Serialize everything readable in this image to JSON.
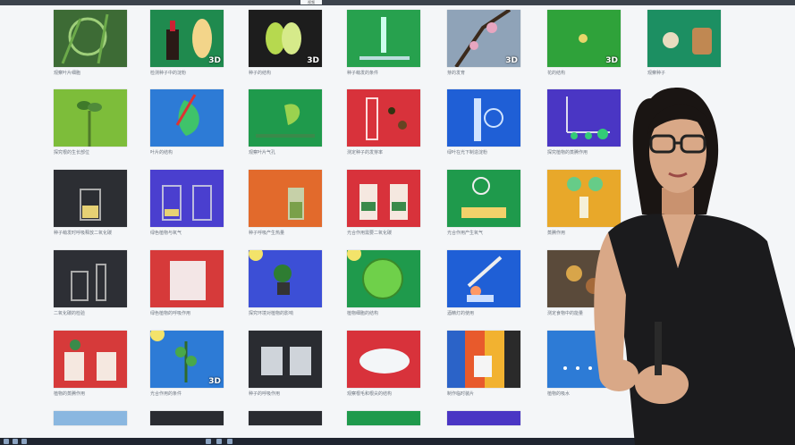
{
  "window": {
    "active_tab": "视频"
  },
  "tiles": [
    {
      "row": 0,
      "col": 0,
      "bg": "#3d6b35",
      "scene": "plant-icon",
      "caption": "观察叶片细胞",
      "badge": ""
    },
    {
      "row": 0,
      "col": 1,
      "bg": "#1f8a4e",
      "scene": "bottle-seed-icon",
      "caption": "检测种子中的淀粉",
      "badge": "3D"
    },
    {
      "row": 0,
      "col": 2,
      "bg": "#1d1d1d",
      "scene": "seed-icon",
      "caption": "种子的结构",
      "badge": "3D"
    },
    {
      "row": 0,
      "col": 3,
      "bg": "#27a14e",
      "scene": "test-tubes-icon",
      "caption": "种子萌发的条件",
      "badge": ""
    },
    {
      "row": 0,
      "col": 4,
      "bg": "#8fa3b8",
      "scene": "branch-icon",
      "caption": "芽的发育",
      "badge": "3D"
    },
    {
      "row": 0,
      "col": 5,
      "bg": "#2fa23a",
      "scene": "flower-icon",
      "caption": "花的结构",
      "badge": "3D"
    },
    {
      "row": 0,
      "col": 6,
      "bg": "#1c8f62",
      "scene": "seeds-sack-icon",
      "caption": "观察种子",
      "badge": ""
    },
    {
      "row": 1,
      "col": 0,
      "bg": "#7dbd3a",
      "scene": "sprout-icon",
      "caption": "探究根的生长部位",
      "badge": ""
    },
    {
      "row": 1,
      "col": 1,
      "bg": "#2d7bd6",
      "scene": "leaf-icon",
      "caption": "叶片的结构",
      "badge": ""
    },
    {
      "row": 1,
      "col": 2,
      "bg": "#1f9a4c",
      "scene": "ginkgo-icon",
      "caption": "观察叶片气孔",
      "badge": ""
    },
    {
      "row": 1,
      "col": 3,
      "bg": "#d8323b",
      "scene": "cylinder-icon",
      "caption": "测定种子的发芽率",
      "badge": ""
    },
    {
      "row": 1,
      "col": 4,
      "bg": "#1f5fd6",
      "scene": "beaker-icon",
      "caption": "绿叶在光下制造淀粉",
      "badge": ""
    },
    {
      "row": 1,
      "col": 5,
      "bg": "#4a36c4",
      "scene": "seedlings-icon",
      "caption": "探究植物的蒸腾作用",
      "badge": ""
    },
    {
      "row": 1,
      "col": 6,
      "bg": "#f4f6f8",
      "scene": "blank",
      "caption": "",
      "badge": ""
    },
    {
      "row": 2,
      "col": 0,
      "bg": "#2c2e33",
      "scene": "jar-icon",
      "caption": "种子萌发时呼吸释放二氧化碳",
      "badge": ""
    },
    {
      "row": 2,
      "col": 1,
      "bg": "#4a3fcf",
      "scene": "jars-icon",
      "caption": "绿色植物与氧气",
      "badge": ""
    },
    {
      "row": 2,
      "col": 2,
      "bg": "#e26a2c",
      "scene": "bottle-icon",
      "caption": "种子呼吸产生热量",
      "badge": ""
    },
    {
      "row": 2,
      "col": 3,
      "bg": "#d8323b",
      "scene": "bottles-icon",
      "caption": "光合作用需要二氧化碳",
      "badge": ""
    },
    {
      "row": 2,
      "col": 4,
      "bg": "#1f9a4c",
      "scene": "funnel-icon",
      "caption": "光合作用产生氧气",
      "badge": ""
    },
    {
      "row": 2,
      "col": 5,
      "bg": "#e8a82a",
      "scene": "apparatus-icon",
      "caption": "蒸腾作用",
      "badge": ""
    },
    {
      "row": 2,
      "col": 6,
      "bg": "#f4f6f8",
      "scene": "blank",
      "caption": "",
      "badge": ""
    },
    {
      "row": 3,
      "col": 0,
      "bg": "#2d2f35",
      "scene": "glass-icon",
      "caption": "二氧化碳的检验",
      "badge": ""
    },
    {
      "row": 3,
      "col": 1,
      "bg": "#d63a3a",
      "scene": "tank-icon",
      "caption": "绿色植物的呼吸作用",
      "badge": ""
    },
    {
      "row": 3,
      "col": 2,
      "bg": "#3c4fd6",
      "scene": "potted-plant-icon",
      "caption": "探究环境对植物的影响",
      "badge": ""
    },
    {
      "row": 3,
      "col": 3,
      "bg": "#1f9a4c",
      "scene": "cell-icon",
      "caption": "植物细胞的结构",
      "badge": ""
    },
    {
      "row": 3,
      "col": 4,
      "bg": "#1f5fd6",
      "scene": "burner-icon",
      "caption": "酒精灯的使用",
      "badge": ""
    },
    {
      "row": 3,
      "col": 5,
      "bg": "#5a4a3a",
      "scene": "food-icon",
      "caption": "测定食物中的能量",
      "badge": ""
    },
    {
      "row": 3,
      "col": 6,
      "bg": "#f4f6f8",
      "scene": "blank",
      "caption": "",
      "badge": ""
    },
    {
      "row": 4,
      "col": 0,
      "bg": "#d63a3a",
      "scene": "plant-jars-icon",
      "caption": "植物的蒸腾作用",
      "badge": ""
    },
    {
      "row": 4,
      "col": 1,
      "bg": "#2d7bd6",
      "scene": "plant-sun-icon",
      "caption": "光合作用的条件",
      "badge": "3D"
    },
    {
      "row": 4,
      "col": 2,
      "bg": "#2a2c31",
      "scene": "bags-icon",
      "caption": "种子的呼吸作用",
      "badge": ""
    },
    {
      "row": 4,
      "col": 3,
      "bg": "#d8323b",
      "scene": "dish-icon",
      "caption": "观察根毛和根尖的结构",
      "badge": ""
    },
    {
      "row": 4,
      "col": 4,
      "bg": "#2a2a2a",
      "scene": "cup-icon",
      "caption": "制作临时装片",
      "badge": ""
    },
    {
      "row": 4,
      "col": 5,
      "bg": "#2d7bd6",
      "scene": "seeds-water-icon",
      "caption": "植物的吸水",
      "badge": ""
    },
    {
      "row": 4,
      "col": 6,
      "bg": "#f4f6f8",
      "scene": "blank",
      "caption": "",
      "badge": ""
    }
  ],
  "partial_row": [
    {
      "col": 0,
      "bg": "#8ab7e0"
    },
    {
      "col": 1,
      "bg": "#2a2c31"
    },
    {
      "col": 2,
      "bg": "#2a2c31"
    },
    {
      "col": 3,
      "bg": "#1f9a4c"
    },
    {
      "col": 4,
      "bg": "#4a36c4"
    },
    {
      "col": 5,
      "bg": "#f4f6f8"
    }
  ],
  "presenter": {
    "shirt_color": "#1b1b1d",
    "skin_color": "#d9a887"
  }
}
